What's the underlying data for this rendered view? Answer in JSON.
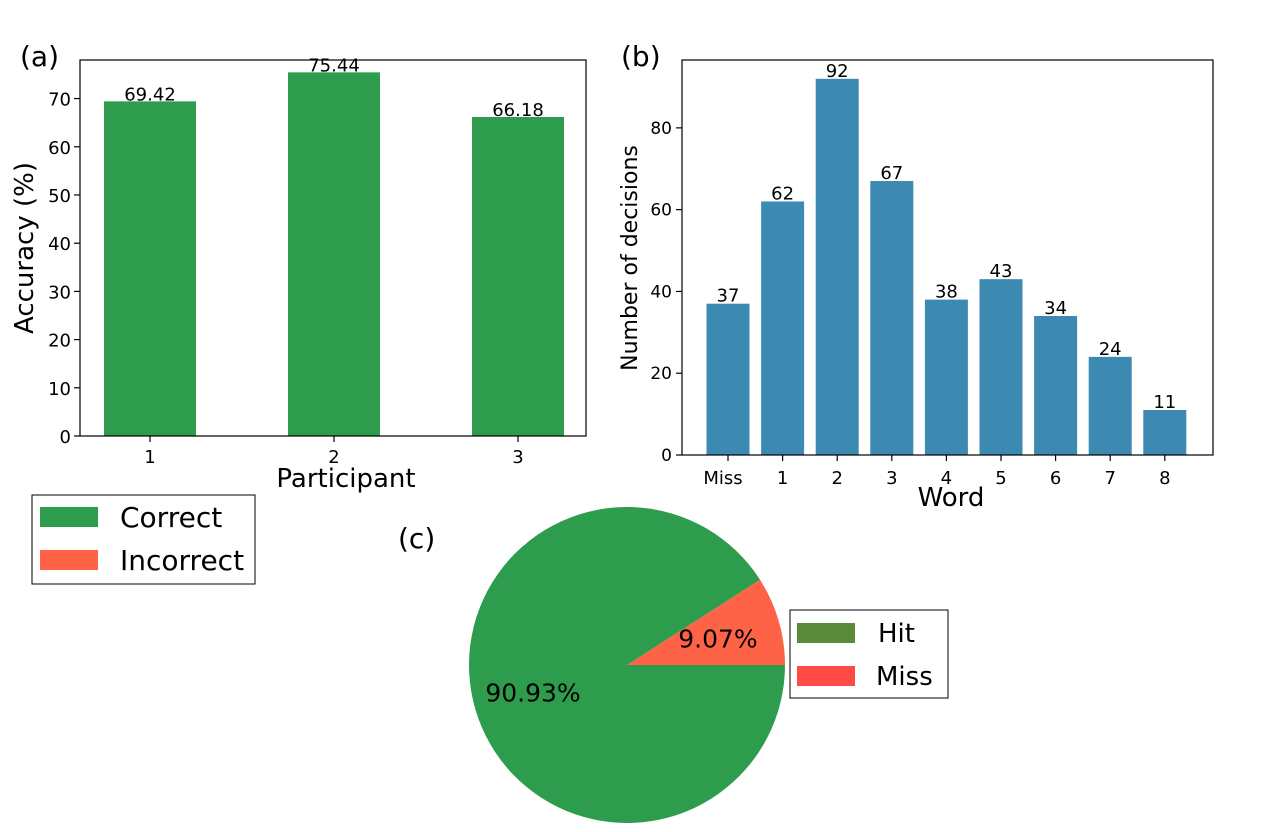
{
  "chart_data": [
    {
      "panel": "(a)",
      "type": "bar",
      "categories": [
        "1",
        "2",
        "3"
      ],
      "values": [
        69.42,
        75.44,
        66.18
      ],
      "value_labels": [
        "69.42",
        "75.44",
        "66.18"
      ],
      "xlabel": "Participant",
      "ylabel": "Accuracy (%)",
      "ylim": [
        0,
        78
      ],
      "yticks": [
        0,
        10,
        20,
        30,
        40,
        50,
        60,
        70
      ],
      "bar_color": "#2e9c4d",
      "legend": {
        "placement": "below",
        "entries": [
          {
            "name": "Correct",
            "color": "#2e9c4d"
          },
          {
            "name": "Incorrect",
            "color": "#ff6347"
          }
        ]
      }
    },
    {
      "panel": "(b)",
      "type": "bar",
      "categories": [
        "Miss",
        "1",
        "2",
        "3",
        "4",
        "5",
        "6",
        "7",
        "8"
      ],
      "values": [
        37,
        62,
        92,
        67,
        38,
        43,
        34,
        24,
        11
      ],
      "value_labels": [
        "37",
        "62",
        "92",
        "67",
        "38",
        "43",
        "34",
        "24",
        "11"
      ],
      "xlabel": "Word",
      "ylabel": "Number of decisions",
      "ylim": [
        0,
        96.6
      ],
      "yticks": [
        0,
        20,
        40,
        60,
        80
      ],
      "bar_color": "#3c89b2"
    },
    {
      "panel": "(c)",
      "type": "pie",
      "slices": [
        {
          "name": "Miss",
          "value": 9.07,
          "label": "9.07%",
          "color": "#ff6347"
        },
        {
          "name": "Hit",
          "value": 90.93,
          "label": "90.93%",
          "color": "#2e9c4d"
        }
      ],
      "legend": {
        "placement": "right",
        "entries": [
          {
            "name": "Hit",
            "color": "#5a8a3a"
          },
          {
            "name": "Miss",
            "color": "#ff4a45"
          }
        ]
      }
    }
  ]
}
